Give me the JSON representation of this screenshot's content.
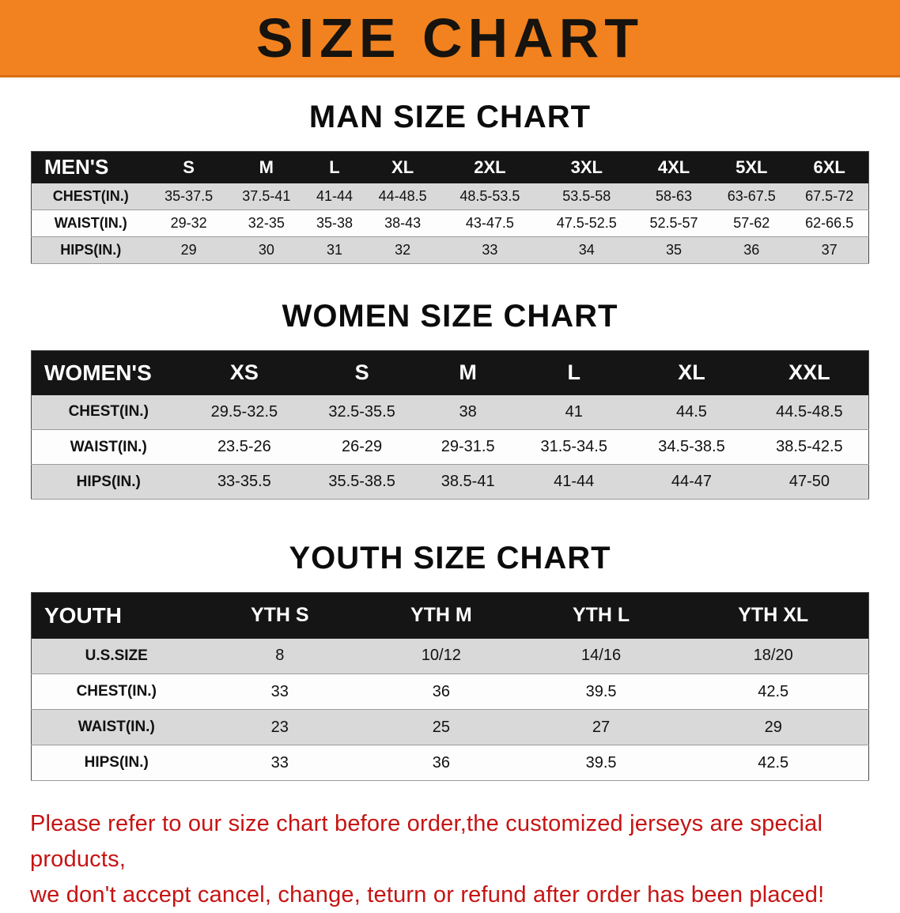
{
  "banner": {
    "title": "SIZE CHART",
    "bg_color": "#F2821F",
    "text_color": "#17130e"
  },
  "sections": [
    {
      "id": "men",
      "title": "MAN SIZE CHART",
      "header_label": "MEN'S",
      "columns": [
        "S",
        "M",
        "L",
        "XL",
        "2XL",
        "3XL",
        "4XL",
        "5XL",
        "6XL"
      ],
      "rows": [
        {
          "label": "CHEST(IN.)",
          "values": [
            "35-37.5",
            "37.5-41",
            "41-44",
            "44-48.5",
            "48.5-53.5",
            "53.5-58",
            "58-63",
            "63-67.5",
            "67.5-72"
          ]
        },
        {
          "label": "WAIST(IN.)",
          "values": [
            "29-32",
            "32-35",
            "35-38",
            "38-43",
            "43-47.5",
            "47.5-52.5",
            "52.5-57",
            "57-62",
            "62-66.5"
          ]
        },
        {
          "label": "HIPS(IN.)",
          "values": [
            "29",
            "30",
            "31",
            "32",
            "33",
            "34",
            "35",
            "36",
            "37"
          ]
        }
      ]
    },
    {
      "id": "women",
      "title": "WOMEN SIZE CHART",
      "header_label": "WOMEN'S",
      "columns": [
        "XS",
        "S",
        "M",
        "L",
        "XL",
        "XXL"
      ],
      "rows": [
        {
          "label": "CHEST(IN.)",
          "values": [
            "29.5-32.5",
            "32.5-35.5",
            "38",
            "41",
            "44.5",
            "44.5-48.5"
          ]
        },
        {
          "label": "WAIST(IN.)",
          "values": [
            "23.5-26",
            "26-29",
            "29-31.5",
            "31.5-34.5",
            "34.5-38.5",
            "38.5-42.5"
          ]
        },
        {
          "label": "HIPS(IN.)",
          "values": [
            "33-35.5",
            "35.5-38.5",
            "38.5-41",
            "41-44",
            "44-47",
            "47-50"
          ]
        }
      ]
    },
    {
      "id": "youth",
      "title": "YOUTH SIZE CHART",
      "header_label": "YOUTH",
      "columns": [
        "YTH S",
        "YTH M",
        "YTH L",
        "YTH XL"
      ],
      "rows": [
        {
          "label": "U.S.SIZE",
          "values": [
            "8",
            "10/12",
            "14/16",
            "18/20"
          ]
        },
        {
          "label": "CHEST(IN.)",
          "values": [
            "33",
            "36",
            "39.5",
            "42.5"
          ]
        },
        {
          "label": "WAIST(IN.)",
          "values": [
            "23",
            "25",
            "27",
            "29"
          ]
        },
        {
          "label": "HIPS(IN.)",
          "values": [
            "33",
            "36",
            "39.5",
            "42.5"
          ]
        }
      ]
    }
  ],
  "disclaimer": {
    "line1": "Please refer to our size chart before order,the customized jerseys are special products,",
    "line2": "we don't accept cancel, change, teturn or refund after order has been placed!",
    "color": "#c61313"
  }
}
